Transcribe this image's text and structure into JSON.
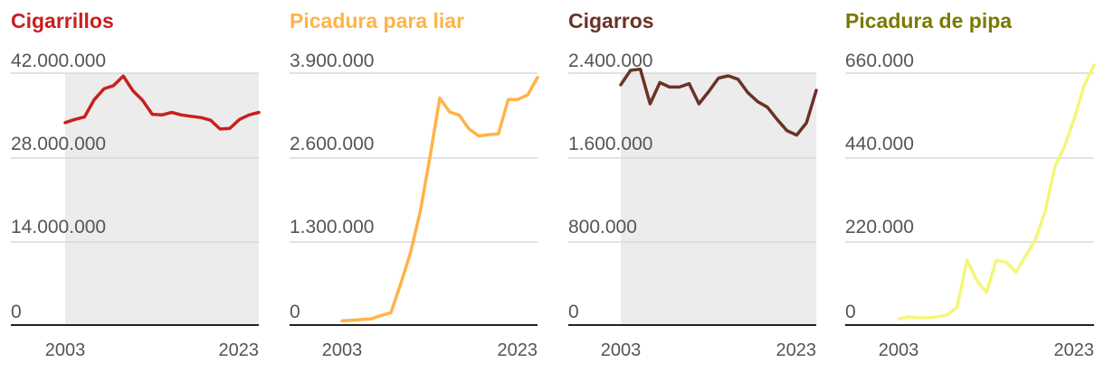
{
  "chart_data": [
    {
      "type": "line",
      "title": "Cigarrillos",
      "color": "#c8201e",
      "yticks": [
        "42.000.000",
        "28.000.000",
        "14.000.000",
        "0"
      ],
      "ylim": [
        0,
        42000000
      ],
      "xlim": [
        2003,
        2023
      ],
      "xticks": [
        "2003",
        "2023"
      ],
      "shaded_region": [
        2003,
        2023
      ],
      "series": [
        {
          "x": [
            2003,
            2004,
            2005,
            2006,
            2007,
            2008,
            2009,
            2010,
            2011,
            2012,
            2013,
            2014,
            2015,
            2016,
            2017,
            2018,
            2019,
            2020,
            2021,
            2022,
            2023
          ],
          "values": [
            31700000,
            32200000,
            32600000,
            35300000,
            37000000,
            37500000,
            39000000,
            36700000,
            35200000,
            33000000,
            32900000,
            33300000,
            32900000,
            32700000,
            32500000,
            32100000,
            30700000,
            30800000,
            32200000,
            32900000,
            33300000
          ]
        }
      ]
    },
    {
      "type": "line",
      "title": "Picadura para liar",
      "color": "#ffb347",
      "yticks": [
        "3.900.000",
        "2.600.000",
        "1.300.000",
        "0"
      ],
      "ylim": [
        0,
        3900000
      ],
      "xlim": [
        2003,
        2023
      ],
      "xticks": [
        "2003",
        "2023"
      ],
      "series": [
        {
          "x": [
            2003,
            2004,
            2005,
            2006,
            2007,
            2008,
            2009,
            2010,
            2011,
            2012,
            2013,
            2014,
            2015,
            2016,
            2017,
            2018,
            2019,
            2020,
            2021,
            2022,
            2023
          ],
          "values": [
            60000,
            70000,
            80000,
            90000,
            140000,
            180000,
            600000,
            1050000,
            1650000,
            2450000,
            3300000,
            3100000,
            3050000,
            2850000,
            2750000,
            2770000,
            2780000,
            3280000,
            3280000,
            3350000,
            3600000
          ]
        }
      ]
    },
    {
      "type": "line",
      "title": "Cigarros",
      "color": "#6b3226",
      "yticks": [
        "2.400.000",
        "1.600.000",
        "800.000",
        "0"
      ],
      "ylim": [
        0,
        2400000
      ],
      "xlim": [
        2003,
        2023
      ],
      "xticks": [
        "2003",
        "2023"
      ],
      "shaded_region": [
        2003,
        2023
      ],
      "series": [
        {
          "x": [
            2003,
            2004,
            2005,
            2006,
            2007,
            2008,
            2009,
            2010,
            2011,
            2012,
            2013,
            2014,
            2015,
            2016,
            2017,
            2018,
            2019,
            2020,
            2021,
            2022,
            2023
          ],
          "values": [
            2150000,
            2280000,
            2290000,
            1980000,
            2170000,
            2130000,
            2130000,
            2160000,
            1980000,
            2090000,
            2210000,
            2230000,
            2200000,
            2080000,
            2000000,
            1950000,
            1840000,
            1740000,
            1700000,
            1810000,
            2100000
          ]
        }
      ]
    },
    {
      "type": "line",
      "title": "Picadura de pipa",
      "color": "#f5f57a",
      "title_color": "#7a7a00",
      "yticks": [
        "660.000",
        "440.000",
        "220.000",
        "0"
      ],
      "ylim": [
        0,
        660000
      ],
      "xlim": [
        2003,
        2023
      ],
      "xticks": [
        "2003",
        "2023"
      ],
      "series": [
        {
          "x": [
            2003,
            2004,
            2005,
            2006,
            2007,
            2008,
            2009,
            2010,
            2011,
            2012,
            2013,
            2014,
            2015,
            2016,
            2017,
            2018,
            2019,
            2020,
            2021,
            2022,
            2023
          ],
          "values": [
            15000,
            20000,
            18000,
            18000,
            20000,
            25000,
            45000,
            160000,
            110000,
            80000,
            160000,
            155000,
            130000,
            170000,
            210000,
            280000,
            390000,
            440000,
            510000,
            590000,
            640000
          ]
        }
      ]
    }
  ]
}
